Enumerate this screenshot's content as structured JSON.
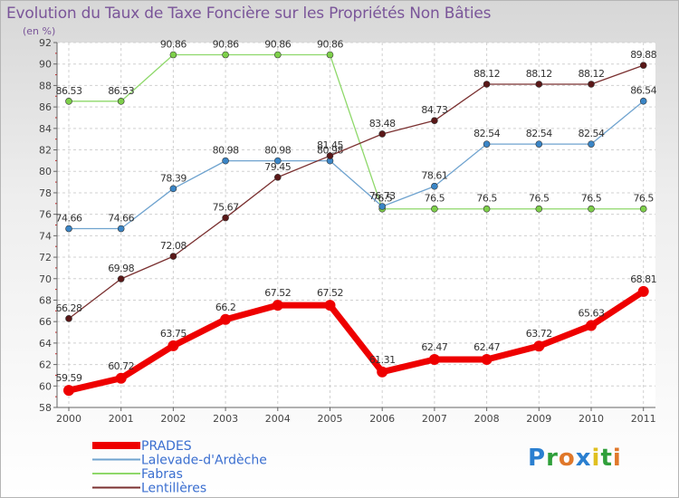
{
  "title": "Evolution du Taux de Taxe Foncière sur les Propriétés Non Bâties",
  "unit": "(en %)",
  "logo": {
    "text": "Proxiti",
    "colors": [
      "#2a7fd0",
      "#2f9f3a",
      "#e0782a",
      "#2a7fd0",
      "#e0c020",
      "#2f9f3a",
      "#e0782a"
    ]
  },
  "chart_data": {
    "type": "line",
    "title": "Evolution du Taux de Taxe Foncière sur les Propriétés Non Bâties",
    "ylabel": "(en %)",
    "xlabel": "",
    "ylim": [
      58,
      92
    ],
    "yticks": [
      58,
      60,
      62,
      64,
      66,
      68,
      70,
      72,
      74,
      76,
      78,
      80,
      82,
      84,
      86,
      88,
      90,
      92
    ],
    "categories": [
      "2000",
      "2001",
      "2002",
      "2003",
      "2004",
      "2005",
      "2006",
      "2007",
      "2008",
      "2009",
      "2010",
      "2011"
    ],
    "series": [
      {
        "name": "PRADES",
        "color": "#ee0000",
        "marker": "#ee0000",
        "values": [
          59.59,
          60.72,
          63.75,
          66.2,
          67.52,
          67.52,
          61.31,
          62.47,
          62.47,
          63.72,
          65.63,
          68.81
        ],
        "labels": [
          "59.59",
          "60.72",
          "63.75",
          "66.2",
          "67.52",
          "67.52",
          "61.31",
          "62.47",
          "62.47",
          "63.72",
          "65.63",
          "68.81"
        ]
      },
      {
        "name": "Lalevade-d'Ardèche",
        "color": "#6fa3cf",
        "marker": "#3a85c6",
        "values": [
          74.66,
          74.66,
          78.39,
          80.98,
          80.98,
          80.98,
          76.73,
          78.61,
          82.54,
          82.54,
          82.54,
          86.54
        ],
        "labels": [
          "74.66",
          "74.66",
          "78.39",
          "80.98",
          "80.98",
          "80.98",
          "76.73",
          "78.61",
          "82.54",
          "82.54",
          "82.54",
          "86.54"
        ]
      },
      {
        "name": "Fabras",
        "color": "#8ed86a",
        "marker": "#7ed04a",
        "values": [
          86.53,
          86.53,
          90.86,
          90.86,
          90.86,
          90.86,
          76.5,
          76.5,
          76.5,
          76.5,
          76.5,
          76.5
        ],
        "labels": [
          "86.53",
          "86.53",
          "90.86",
          "90.86",
          "90.86",
          "90.86",
          "76.5",
          "76.5",
          "76.5",
          "76.5",
          "76.5",
          "76.5"
        ]
      },
      {
        "name": "Lentillères",
        "color": "#7a3030",
        "marker": "#5a1818",
        "values": [
          66.28,
          69.98,
          72.08,
          75.67,
          79.45,
          81.45,
          83.48,
          84.73,
          88.12,
          88.12,
          88.12,
          89.88
        ],
        "labels": [
          "66.28",
          "69.98",
          "72.08",
          "75.67",
          "79.45",
          "81.45",
          "83.48",
          "84.73",
          "88.12",
          "88.12",
          "88.12",
          "89.88"
        ]
      }
    ],
    "legend": {
      "position": "bottom-left"
    }
  }
}
